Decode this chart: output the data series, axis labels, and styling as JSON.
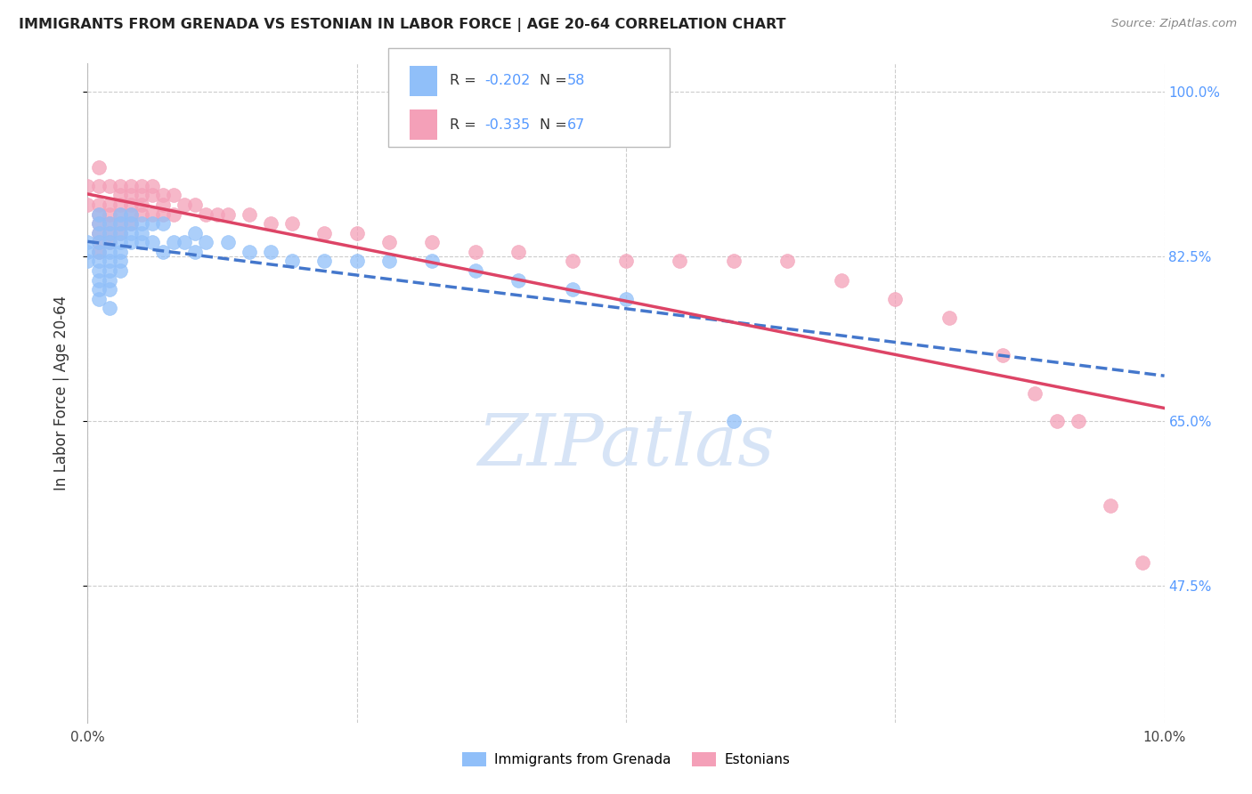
{
  "title": "IMMIGRANTS FROM GRENADA VS ESTONIAN IN LABOR FORCE | AGE 20-64 CORRELATION CHART",
  "source": "Source: ZipAtlas.com",
  "ylabel": "In Labor Force | Age 20-64",
  "xmin": 0.0,
  "xmax": 0.1,
  "ymin": 0.33,
  "ymax": 1.03,
  "yticks": [
    1.0,
    0.825,
    0.65,
    0.475
  ],
  "ytick_labels": [
    "100.0%",
    "82.5%",
    "65.0%",
    "47.5%"
  ],
  "color_blue": "#90bff9",
  "color_pink": "#f4a0b8",
  "line_color_blue": "#4477cc",
  "line_color_pink": "#dd4466",
  "watermark_color": "#d0e0f5",
  "grenada_x": [
    0.0,
    0.0,
    0.0,
    0.001,
    0.001,
    0.001,
    0.001,
    0.001,
    0.001,
    0.001,
    0.001,
    0.001,
    0.001,
    0.002,
    0.002,
    0.002,
    0.002,
    0.002,
    0.002,
    0.002,
    0.002,
    0.002,
    0.003,
    0.003,
    0.003,
    0.003,
    0.003,
    0.003,
    0.003,
    0.004,
    0.004,
    0.004,
    0.004,
    0.005,
    0.005,
    0.005,
    0.006,
    0.006,
    0.007,
    0.007,
    0.008,
    0.009,
    0.01,
    0.01,
    0.011,
    0.013,
    0.015,
    0.017,
    0.019,
    0.022,
    0.025,
    0.028,
    0.032,
    0.036,
    0.04,
    0.045,
    0.05,
    0.06
  ],
  "grenada_y": [
    0.84,
    0.83,
    0.82,
    0.87,
    0.86,
    0.85,
    0.84,
    0.83,
    0.82,
    0.81,
    0.8,
    0.79,
    0.78,
    0.86,
    0.85,
    0.84,
    0.83,
    0.82,
    0.81,
    0.8,
    0.79,
    0.77,
    0.87,
    0.86,
    0.85,
    0.84,
    0.83,
    0.82,
    0.81,
    0.87,
    0.86,
    0.85,
    0.84,
    0.86,
    0.85,
    0.84,
    0.86,
    0.84,
    0.86,
    0.83,
    0.84,
    0.84,
    0.85,
    0.83,
    0.84,
    0.84,
    0.83,
    0.83,
    0.82,
    0.82,
    0.82,
    0.82,
    0.82,
    0.81,
    0.8,
    0.79,
    0.78,
    0.65
  ],
  "estonian_x": [
    0.0,
    0.0,
    0.001,
    0.001,
    0.001,
    0.001,
    0.001,
    0.001,
    0.001,
    0.001,
    0.002,
    0.002,
    0.002,
    0.002,
    0.002,
    0.002,
    0.003,
    0.003,
    0.003,
    0.003,
    0.003,
    0.003,
    0.004,
    0.004,
    0.004,
    0.004,
    0.004,
    0.005,
    0.005,
    0.005,
    0.005,
    0.006,
    0.006,
    0.006,
    0.007,
    0.007,
    0.007,
    0.008,
    0.008,
    0.009,
    0.01,
    0.011,
    0.012,
    0.013,
    0.015,
    0.017,
    0.019,
    0.022,
    0.025,
    0.028,
    0.032,
    0.036,
    0.04,
    0.045,
    0.05,
    0.055,
    0.06,
    0.065,
    0.07,
    0.075,
    0.08,
    0.085,
    0.088,
    0.09,
    0.092,
    0.095,
    0.098
  ],
  "estonian_y": [
    0.9,
    0.88,
    0.92,
    0.9,
    0.88,
    0.87,
    0.86,
    0.85,
    0.84,
    0.83,
    0.9,
    0.88,
    0.87,
    0.86,
    0.85,
    0.84,
    0.9,
    0.89,
    0.88,
    0.87,
    0.86,
    0.85,
    0.9,
    0.89,
    0.88,
    0.87,
    0.86,
    0.9,
    0.89,
    0.88,
    0.87,
    0.9,
    0.89,
    0.87,
    0.89,
    0.88,
    0.87,
    0.89,
    0.87,
    0.88,
    0.88,
    0.87,
    0.87,
    0.87,
    0.87,
    0.86,
    0.86,
    0.85,
    0.85,
    0.84,
    0.84,
    0.83,
    0.83,
    0.82,
    0.82,
    0.82,
    0.82,
    0.82,
    0.8,
    0.78,
    0.76,
    0.72,
    0.68,
    0.65,
    0.65,
    0.56,
    0.5
  ]
}
